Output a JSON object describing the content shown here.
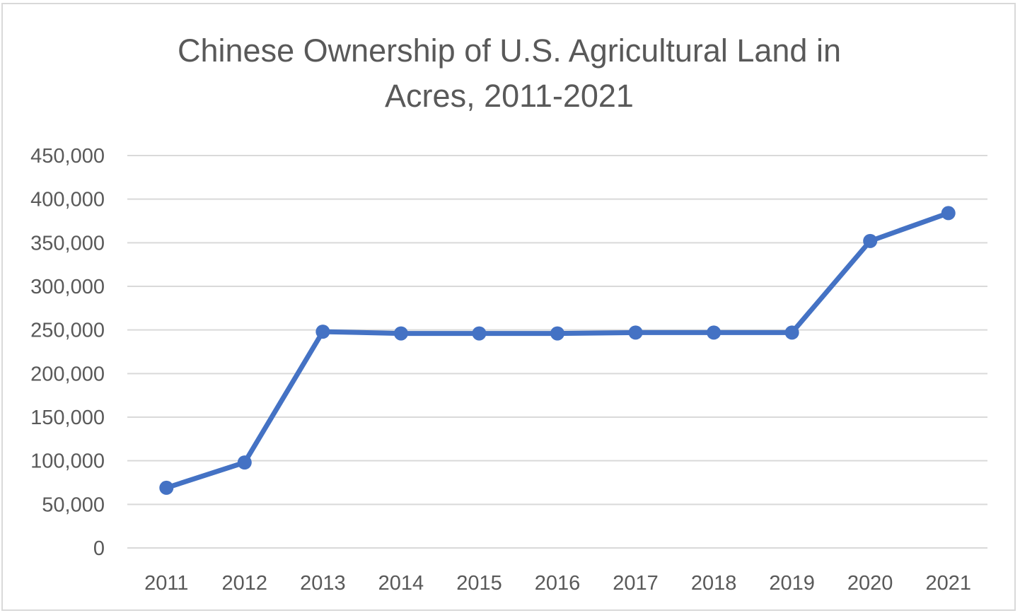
{
  "chart_data": {
    "type": "line",
    "title": "Chinese Ownership of U.S. Agricultural Land in Acres, 2011-2021",
    "title_lines": [
      "Chinese Ownership of U.S. Agricultural Land in",
      "Acres, 2011-2021"
    ],
    "xlabel": "",
    "ylabel": "",
    "categories": [
      "2011",
      "2012",
      "2013",
      "2014",
      "2015",
      "2016",
      "2017",
      "2018",
      "2019",
      "2020",
      "2021"
    ],
    "series": [
      {
        "values": [
          69000,
          98000,
          248000,
          246000,
          246000,
          246000,
          247000,
          247000,
          247000,
          352000,
          384000
        ],
        "color": "#4472c4"
      }
    ],
    "ylim": [
      0,
      450000
    ],
    "y_ticks": [
      0,
      50000,
      100000,
      150000,
      200000,
      250000,
      300000,
      350000,
      400000,
      450000
    ],
    "y_tick_labels": [
      "0",
      "50,000",
      "100,000",
      "150,000",
      "200,000",
      "250,000",
      "300,000",
      "350,000",
      "400,000",
      "450,000"
    ],
    "grid": true,
    "legend": "none"
  }
}
